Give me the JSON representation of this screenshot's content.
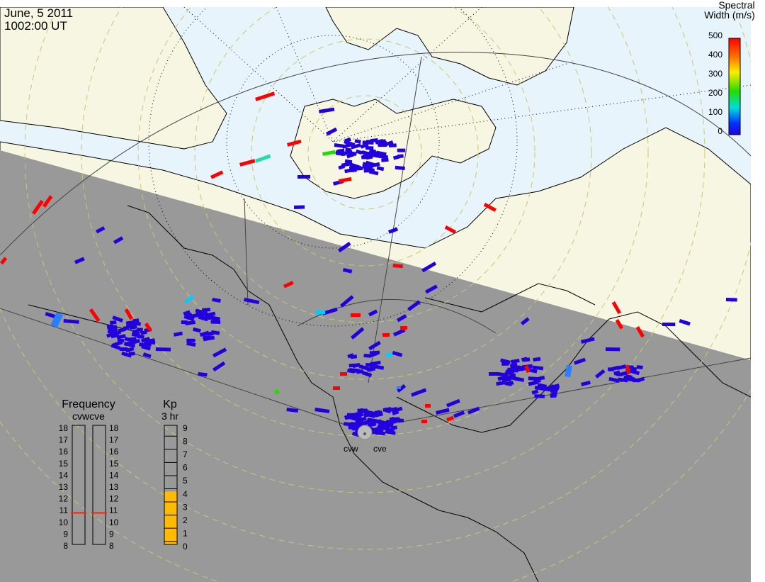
{
  "header": {
    "date": "June, 5 2011",
    "time": "1002:00 UT"
  },
  "colorbar": {
    "title_line1": "Spectral",
    "title_line2": "Width (m/s)",
    "ticks": [
      "500",
      "400",
      "300",
      "200",
      "100",
      "0"
    ],
    "colors": [
      "#ff0000",
      "#ff7700",
      "#ffee00",
      "#22dd00",
      "#00dddd",
      "#0033ff",
      "#2200dd"
    ]
  },
  "frequency_panel": {
    "title": "Frequency",
    "subtitle": "cvwcve",
    "ticks": [
      "18",
      "17",
      "16",
      "15",
      "14",
      "13",
      "12",
      "11",
      "10",
      "9",
      "8"
    ],
    "cvw_mhz": 10.8,
    "cve_mhz": 10.8,
    "marker_color": "#ff2200"
  },
  "kp_panel": {
    "title": "Kp",
    "subtitle": "3 hr",
    "ticks": [
      "9",
      "8",
      "7",
      "6",
      "5",
      "4",
      "3",
      "2",
      "1",
      "0"
    ],
    "value": 4,
    "fill_color": "#ffbb00"
  },
  "radars": {
    "west_label": "cvw",
    "east_label": "cve"
  },
  "map_colors": {
    "day_ocean": "#e8f4fb",
    "land": "#f6f6e2",
    "night": "#999999"
  }
}
